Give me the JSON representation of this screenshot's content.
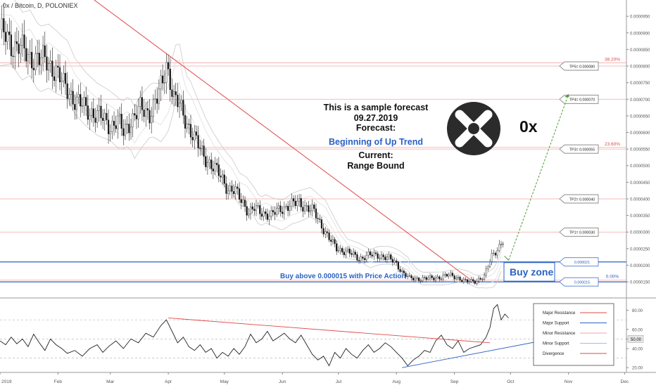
{
  "header": {
    "symbol": "0x / Bitcoin, D, POLONIEX"
  },
  "colors": {
    "candle_up": "#ffffff",
    "candle_down": "#111111",
    "resistance": "#e04848",
    "support": "#2a62c4",
    "minor_resistance": "#f2a6a6",
    "minor_support": "#9ebbe8",
    "forecast_arrow": "#4f9a3a",
    "accent_text": "#2a62c4"
  },
  "forecast": {
    "line1": "This is a sample forecast",
    "line2": "09.27.2019",
    "line3": "Forecast:",
    "line4": "Beginning of Up Trend",
    "line5": "Current:",
    "line6": "Range Bound"
  },
  "logo_label": "0x",
  "buy_zone_label": "Buy zone",
  "buy_note": "Buy above 0.000015 with Price Action",
  "fib_levels": [
    {
      "label": "38.20%",
      "value": 8.1e-05
    },
    {
      "label": "23.60%",
      "value": 5.55e-05
    },
    {
      "label": "0.00%",
      "value": 1.55e-05
    }
  ],
  "targets": [
    {
      "label": "TP5= 0.000080",
      "value": 8e-05
    },
    {
      "label": "TP4= 0.000070",
      "value": 7e-05
    },
    {
      "label": "TP3= 0.000055",
      "value": 5.5e-05
    },
    {
      "label": "TP2= 0.000040",
      "value": 4e-05
    },
    {
      "label": "TP1= 0.000030",
      "value": 3e-05
    }
  ],
  "zone": {
    "upper": {
      "label": "0.000021",
      "value": 2.1e-05
    },
    "lower": {
      "label": "0.000015",
      "value": 1.5e-05
    }
  },
  "legend": [
    {
      "label": "Major Resistance",
      "color": "#e04848"
    },
    {
      "label": "Major Support",
      "color": "#2a62c4"
    },
    {
      "label": "Minor Resistance",
      "color": "#f2a6a6"
    },
    {
      "label": "Minor Support",
      "color": "#9ebbe8"
    },
    {
      "label": "Divergence",
      "color": "#e04848"
    }
  ],
  "chart_data": {
    "type": "candlestick",
    "price_axis": {
      "ylim": [
        1.1e-05,
        9.99e-05
      ],
      "ticks": [
        "0.0000950",
        "0.0000900",
        "0.0000850",
        "0.0000800",
        "0.0000750",
        "0.0000700",
        "0.0000650",
        "0.0000600",
        "0.0000550",
        "0.0000500",
        "0.0000450",
        "0.0000400",
        "0.0000350",
        "0.0000300",
        "0.0000250",
        "0.0000200",
        "0.0000150"
      ],
      "tick_values": [
        9.5e-05,
        9e-05,
        8.5e-05,
        8e-05,
        7.5e-05,
        7e-05,
        6.5e-05,
        6e-05,
        5.5e-05,
        5e-05,
        4.5e-05,
        4e-05,
        3.5e-05,
        3e-05,
        2.5e-05,
        2e-05,
        1.5e-05
      ]
    },
    "time_axis": {
      "labels": [
        "2019",
        "Feb",
        "Mar",
        "Apr",
        "May",
        "Jun",
        "Jul",
        "Aug",
        "Sep",
        "Oct",
        "Nov",
        "Dec"
      ],
      "days": [
        0,
        31,
        59,
        90,
        120,
        151,
        181,
        212,
        243,
        273,
        304,
        334
      ],
      "range_days": [
        0,
        335
      ],
      "last_day": 269
    },
    "close_path": [
      [
        0,
        9.1e-05
      ],
      [
        6,
        8.6e-05
      ],
      [
        10,
        8.7e-05
      ],
      [
        15,
        8.2e-05
      ],
      [
        20,
        8.3e-05
      ],
      [
        27,
        8e-05
      ],
      [
        30,
        7.9e-05
      ],
      [
        34,
        7.4e-05
      ],
      [
        40,
        7e-05
      ],
      [
        46,
        6.7e-05
      ],
      [
        53,
        6.5e-05
      ],
      [
        59,
        6.2e-05
      ],
      [
        63,
        6.35e-05
      ],
      [
        66,
        6e-05
      ],
      [
        69,
        6.3e-05
      ],
      [
        75,
        6.7e-05
      ],
      [
        80,
        6.6e-05
      ],
      [
        84,
        7e-05
      ],
      [
        87,
        7.5e-05
      ],
      [
        89,
        8.1e-05
      ],
      [
        91,
        7.6e-05
      ],
      [
        93,
        7e-05
      ],
      [
        96,
        6.8e-05
      ],
      [
        100,
        6.3e-05
      ],
      [
        104,
        5.8e-05
      ],
      [
        108,
        5.4e-05
      ],
      [
        113,
        5e-05
      ],
      [
        118,
        4.7e-05
      ],
      [
        122,
        4.3e-05
      ],
      [
        126,
        4.2e-05
      ],
      [
        130,
        3.9e-05
      ],
      [
        133,
        3.6e-05
      ],
      [
        136,
        3.7e-05
      ],
      [
        140,
        3.6e-05
      ],
      [
        145,
        3.5e-05
      ],
      [
        150,
        3.7e-05
      ],
      [
        155,
        3.8e-05
      ],
      [
        160,
        3.9e-05
      ],
      [
        165,
        3.7e-05
      ],
      [
        168,
        3.6e-05
      ],
      [
        172,
        3.2e-05
      ],
      [
        176,
        2.8e-05
      ],
      [
        180,
        2.5e-05
      ],
      [
        186,
        2.4e-05
      ],
      [
        192,
        2.2e-05
      ],
      [
        197,
        2.3e-05
      ],
      [
        203,
        2.3e-05
      ],
      [
        208,
        2.2e-05
      ],
      [
        212,
        2.05e-05
      ],
      [
        215,
        1.8e-05
      ],
      [
        219,
        1.6e-05
      ],
      [
        224,
        1.6e-05
      ],
      [
        230,
        1.6e-05
      ],
      [
        236,
        1.65e-05
      ],
      [
        240,
        1.7e-05
      ],
      [
        244,
        1.65e-05
      ],
      [
        249,
        1.5e-05
      ],
      [
        254,
        1.53e-05
      ],
      [
        259,
        1.65e-05
      ],
      [
        263,
        2.3e-05
      ],
      [
        266,
        2.5e-05
      ],
      [
        269,
        2.7e-05
      ]
    ],
    "indicator": {
      "type": "line",
      "ylim": [
        15,
        90
      ],
      "tick_values": [
        80,
        60,
        50,
        40,
        20
      ],
      "ticks": [
        "80.00",
        "60.00",
        "50.00",
        "40.00",
        "20.00"
      ],
      "current": "50.00",
      "path": [
        [
          0,
          48
        ],
        [
          3,
          44
        ],
        [
          6,
          52
        ],
        [
          9,
          45
        ],
        [
          12,
          50
        ],
        [
          15,
          42
        ],
        [
          18,
          55
        ],
        [
          21,
          46
        ],
        [
          24,
          38
        ],
        [
          27,
          50
        ],
        [
          30,
          44
        ],
        [
          33,
          40
        ],
        [
          36,
          35
        ],
        [
          40,
          38
        ],
        [
          44,
          32
        ],
        [
          48,
          40
        ],
        [
          52,
          44
        ],
        [
          55,
          36
        ],
        [
          58,
          42
        ],
        [
          62,
          48
        ],
        [
          66,
          40
        ],
        [
          70,
          50
        ],
        [
          74,
          46
        ],
        [
          78,
          56
        ],
        [
          82,
          52
        ],
        [
          86,
          64
        ],
        [
          89,
          70
        ],
        [
          92,
          58
        ],
        [
          95,
          46
        ],
        [
          98,
          52
        ],
        [
          101,
          42
        ],
        [
          104,
          38
        ],
        [
          107,
          44
        ],
        [
          110,
          36
        ],
        [
          113,
          40
        ],
        [
          116,
          30
        ],
        [
          119,
          36
        ],
        [
          122,
          32
        ],
        [
          125,
          40
        ],
        [
          128,
          34
        ],
        [
          131,
          42
        ],
        [
          134,
          55
        ],
        [
          137,
          46
        ],
        [
          140,
          50
        ],
        [
          143,
          58
        ],
        [
          146,
          48
        ],
        [
          149,
          52
        ],
        [
          152,
          56
        ],
        [
          155,
          50
        ],
        [
          158,
          46
        ],
        [
          161,
          54
        ],
        [
          164,
          44
        ],
        [
          167,
          34
        ],
        [
          170,
          28
        ],
        [
          173,
          32
        ],
        [
          176,
          22
        ],
        [
          179,
          36
        ],
        [
          182,
          30
        ],
        [
          185,
          40
        ],
        [
          188,
          34
        ],
        [
          191,
          30
        ],
        [
          194,
          38
        ],
        [
          197,
          44
        ],
        [
          200,
          36
        ],
        [
          203,
          40
        ],
        [
          206,
          46
        ],
        [
          209,
          42
        ],
        [
          212,
          36
        ],
        [
          215,
          30
        ],
        [
          218,
          22
        ],
        [
          221,
          28
        ],
        [
          224,
          32
        ],
        [
          227,
          38
        ],
        [
          230,
          36
        ],
        [
          233,
          48
        ],
        [
          236,
          54
        ],
        [
          239,
          44
        ],
        [
          242,
          40
        ],
        [
          245,
          48
        ],
        [
          248,
          36
        ],
        [
          251,
          40
        ],
        [
          254,
          42
        ],
        [
          257,
          44
        ],
        [
          260,
          52
        ],
        [
          262,
          62
        ],
        [
          264,
          82
        ],
        [
          266,
          86
        ],
        [
          268,
          70
        ],
        [
          270,
          76
        ],
        [
          272,
          72
        ]
      ]
    },
    "lines": [
      {
        "name": "Major Resistance",
        "from": [
          0,
          0.000121
        ],
        "to": [
          252,
          1.55e-05
        ]
      },
      {
        "name": "Major Support",
        "from": [
          0,
          2.1e-05
        ],
        "to": [
          325,
          2.1e-05
        ]
      },
      {
        "name": "Major Support",
        "from": [
          0,
          1.5e-05
        ],
        "to": [
          325,
          1.5e-05
        ]
      },
      {
        "name": "forecast",
        "from": [
          272,
          2.15e-05
        ],
        "to": [
          304,
          7.15e-05
        ]
      },
      {
        "name": "Divergence",
        "from": [
          90,
          72
        ],
        "to": [
          262,
          46
        ],
        "pane": "indicator"
      },
      {
        "name": "Major Support",
        "from": [
          215,
          20
        ],
        "to": [
          300,
          52
        ],
        "pane": "indicator"
      }
    ]
  }
}
